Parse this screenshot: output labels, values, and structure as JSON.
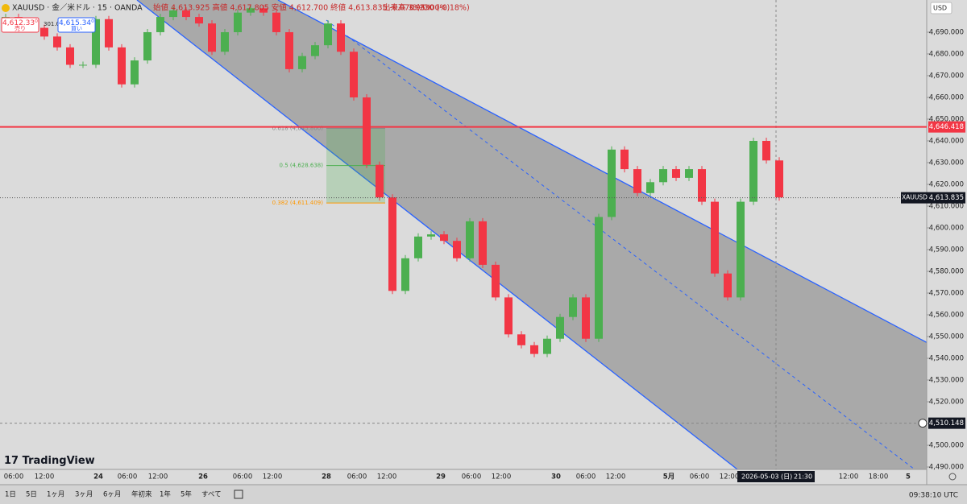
{
  "header": {
    "symbol": "XAUUSD · 金／米ドル · 15 · OANDA",
    "ohlc": "始値 4,613.925 高値 4,617.805 安値 4,612.700 終値 4,613.835 -0.070 (-0.00%)",
    "volume": "出来高 3.95 K",
    "change": "-8.230 (-0.18%)"
  },
  "trade": {
    "sell_price": "4,612.33",
    "sell_sup": "0",
    "sell_label": "売り",
    "spread": "301.0",
    "buy_price": "4,615.34",
    "buy_sup": "0",
    "buy_label": "買い"
  },
  "currency": "USD",
  "logo": "TradingView",
  "chart": {
    "type": "candlestick",
    "ylim": [
      4488.9,
      4704.8
    ],
    "yticks": [
      {
        "value": 4490,
        "label": "4,490.000"
      },
      {
        "value": 4500,
        "label": "4,500.000"
      },
      {
        "value": 4510,
        "label": "4,510.000"
      },
      {
        "value": 4520,
        "label": "4,520.000"
      },
      {
        "value": 4530,
        "label": "4,530.000"
      },
      {
        "value": 4540,
        "label": "4,540.000"
      },
      {
        "value": 4550,
        "label": "4,550.000"
      },
      {
        "value": 4560,
        "label": "4,560.000"
      },
      {
        "value": 4570,
        "label": "4,570.000"
      },
      {
        "value": 4580,
        "label": "4,580.000"
      },
      {
        "value": 4590,
        "label": "4,590.000"
      },
      {
        "value": 4600,
        "label": "4,600.000"
      },
      {
        "value": 4610,
        "label": "4,610.000"
      },
      {
        "value": 4620,
        "label": "4,620.000"
      },
      {
        "value": 4630,
        "label": "4,630.000"
      },
      {
        "value": 4640,
        "label": "4,640.000"
      },
      {
        "value": 4650,
        "label": "4,650.000"
      },
      {
        "value": 4660,
        "label": "4,660.000"
      },
      {
        "value": 4670,
        "label": "4,670.000"
      },
      {
        "value": 4680,
        "label": "4,680.000"
      },
      {
        "value": 4690,
        "label": "4,690.000"
      }
    ],
    "closes": [
      4697,
      4694,
      4692,
      4688,
      4683,
      4675,
      4675,
      4696,
      4683,
      4666,
      4677,
      4690,
      4697,
      4700,
      4697,
      4694,
      4681,
      4690,
      4699,
      4701,
      4699,
      4690,
      4673,
      4679,
      4684,
      4694,
      4681,
      4660,
      4629,
      4614,
      4571,
      4586,
      4596,
      4597,
      4594,
      4586,
      4603,
      4583,
      4568,
      4551,
      4546,
      4542,
      4549,
      4559,
      4568,
      4549,
      4605,
      4636,
      4627,
      4616,
      4621,
      4627,
      4623,
      4627,
      4612,
      4579,
      4568,
      4612,
      4640,
      4631,
      4614
    ],
    "alert_line": {
      "value": 4646.418,
      "label": "4,646.418"
    },
    "last_price": {
      "symbol": "XAUUSD",
      "value": 4613.835,
      "label": "4,613.835"
    },
    "cursor_price": {
      "value": 4510.148,
      "label": "4,510.148"
    },
    "fib": [
      {
        "value": 4645.8,
        "label": "0.618 (4,645.800)"
      },
      {
        "value": 4628.638,
        "label": "0.5 (4,628.638)"
      },
      {
        "value": 4611.409,
        "label": "0.382 (4,611.409)"
      }
    ],
    "xticks": [
      "06:00",
      "12:00",
      "24",
      "06:00",
      "12:00",
      "26",
      "06:00",
      "12:00",
      "28",
      "06:00",
      "12:00",
      "29",
      "06:00",
      "12:00",
      "30",
      "06:00",
      "12:00",
      "5月",
      "06:00",
      "12:00",
      "12:00",
      "18:00",
      "5"
    ],
    "cursor_date": "2026-05-03 (日)",
    "cursor_time": "21:30"
  },
  "footer": {
    "ranges": [
      "1日",
      "5日",
      "1ヶ月",
      "3ヶ月",
      "6ヶ月",
      "年初来",
      "1年",
      "5年",
      "すべて"
    ],
    "clock": "09:38:10 UTC"
  }
}
